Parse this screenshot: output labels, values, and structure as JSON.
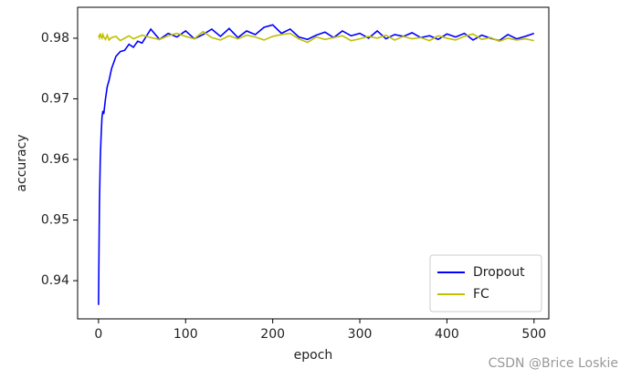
{
  "chart_data": {
    "type": "line",
    "x_label": "epoch",
    "y_label": "accuracy",
    "x": [
      0,
      1,
      2,
      3,
      4,
      5,
      6,
      8,
      10,
      12,
      15,
      20,
      25,
      30,
      35,
      40,
      45,
      50,
      60,
      70,
      80,
      90,
      100,
      110,
      120,
      130,
      140,
      150,
      160,
      170,
      180,
      190,
      200,
      210,
      220,
      230,
      240,
      250,
      260,
      270,
      280,
      290,
      300,
      310,
      320,
      330,
      340,
      350,
      360,
      370,
      380,
      390,
      400,
      410,
      420,
      430,
      440,
      450,
      460,
      470,
      480,
      490,
      500
    ],
    "series": [
      {
        "name": "Dropout",
        "color": "#0000ff",
        "values": [
          0.936,
          0.952,
          0.96,
          0.964,
          0.967,
          0.968,
          0.9675,
          0.97,
          0.972,
          0.973,
          0.975,
          0.977,
          0.9778,
          0.978,
          0.979,
          0.9785,
          0.9795,
          0.9792,
          0.9815,
          0.9798,
          0.9808,
          0.9802,
          0.9812,
          0.9799,
          0.9806,
          0.9815,
          0.9803,
          0.9816,
          0.9801,
          0.9812,
          0.9806,
          0.9818,
          0.9822,
          0.9808,
          0.9815,
          0.9802,
          0.9798,
          0.9805,
          0.981,
          0.9801,
          0.9812,
          0.9804,
          0.9808,
          0.98,
          0.9812,
          0.9799,
          0.9806,
          0.9803,
          0.9809,
          0.9801,
          0.9804,
          0.9798,
          0.9807,
          0.9802,
          0.9808,
          0.9797,
          0.9805,
          0.98,
          0.9796,
          0.9806,
          0.9799,
          0.9803,
          0.9808
        ]
      },
      {
        "name": "FC",
        "color": "#bfbf00",
        "values": [
          0.9805,
          0.9801,
          0.9808,
          0.9803,
          0.98,
          0.9806,
          0.9802,
          0.9798,
          0.9805,
          0.9797,
          0.9801,
          0.9803,
          0.9796,
          0.98,
          0.9804,
          0.9799,
          0.9802,
          0.9805,
          0.9801,
          0.9798,
          0.9804,
          0.9808,
          0.9803,
          0.9799,
          0.9811,
          0.9801,
          0.9797,
          0.9804,
          0.9799,
          0.9805,
          0.9802,
          0.9797,
          0.9803,
          0.9806,
          0.9808,
          0.9799,
          0.9793,
          0.9802,
          0.9798,
          0.9801,
          0.9804,
          0.9796,
          0.9799,
          0.9803,
          0.98,
          0.9805,
          0.9797,
          0.9803,
          0.9799,
          0.9801,
          0.9796,
          0.9804,
          0.98,
          0.9797,
          0.9803,
          0.9807,
          0.9798,
          0.9801,
          0.9795,
          0.98,
          0.9797,
          0.9799,
          0.9796
        ]
      }
    ],
    "xlim": [
      -24,
      517
    ],
    "ylim": [
      0.9337,
      0.9851
    ],
    "xticks": [
      0,
      100,
      200,
      300,
      400,
      500
    ],
    "yticks": [
      0.94,
      0.95,
      0.96,
      0.97,
      0.98
    ],
    "legend": "lower right",
    "watermark": "CSDN @Brice Loskie"
  }
}
